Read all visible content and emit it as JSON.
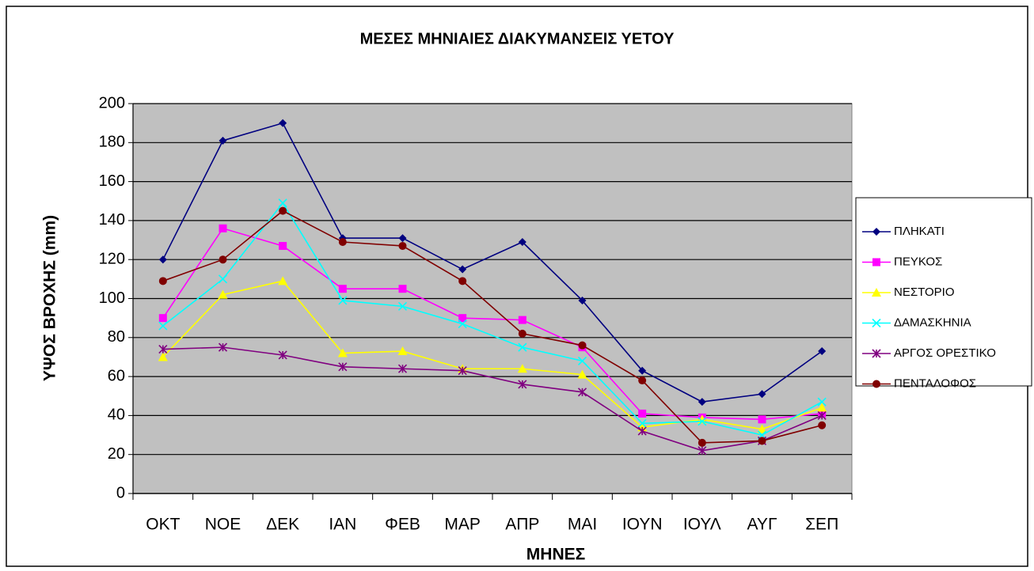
{
  "chart_data": {
    "type": "line",
    "title": "ΜΕΣΕΣ ΜΗΝΙΑΙΕΣ ΔΙΑΚΥΜΑΝΣΕΙΣ ΥΕΤΟΥ",
    "x_label": "ΜΗΝΕΣ",
    "y_label": "ΥΨΟΣ ΒΡΟΧΗΣ (mm)",
    "categories": [
      "ΟΚΤ",
      "ΝΟΕ",
      "ΔΕΚ",
      "ΙΑΝ",
      "ΦΕΒ",
      "ΜΑΡ",
      "ΑΠΡ",
      "ΜΑΙ",
      "ΙΟΥΝ",
      "ΙΟΥΛ",
      "ΑΥΓ",
      "ΣΕΠ"
    ],
    "series": [
      {
        "name": "ΠΛΗΚΑΤΙ",
        "color": "#000080",
        "marker": "diamond",
        "values": [
          120,
          181,
          190,
          131,
          131,
          115,
          129,
          99,
          63,
          47,
          51,
          73
        ]
      },
      {
        "name": "ΠΕΥΚΟΣ",
        "color": "#ff00ff",
        "marker": "square",
        "values": [
          90,
          136,
          127,
          105,
          105,
          90,
          89,
          75,
          41,
          39,
          38,
          41
        ]
      },
      {
        "name": "ΝΕΣΤΟΡΙΟ",
        "color": "#ffff00",
        "marker": "triangle",
        "values": [
          70,
          102,
          109,
          72,
          73,
          64,
          64,
          61,
          34,
          38,
          33,
          44
        ]
      },
      {
        "name": "ΔΑΜΑΣΚΗΝΙΑ",
        "color": "#00ffff",
        "marker": "x",
        "values": [
          86,
          110,
          149,
          99,
          96,
          87,
          75,
          68,
          36,
          37,
          30,
          47
        ]
      },
      {
        "name": "ΑΡΓΟΣ ΟΡΕΣΤΙΚΟ",
        "color": "#800080",
        "marker": "star",
        "values": [
          74,
          75,
          71,
          65,
          64,
          63,
          56,
          52,
          32,
          22,
          27,
          40
        ]
      },
      {
        "name": "ΠΕΝΤΑΛΟΦΟΣ",
        "color": "#800000",
        "marker": "circle",
        "values": [
          109,
          120,
          145,
          129,
          127,
          109,
          82,
          76,
          58,
          26,
          27,
          35
        ]
      }
    ],
    "ylim": [
      0,
      200
    ],
    "yticks": [
      0,
      20,
      40,
      60,
      80,
      100,
      120,
      140,
      160,
      180,
      200
    ],
    "grid": true,
    "plot_background": "#c0c0c0",
    "legend": "right"
  }
}
